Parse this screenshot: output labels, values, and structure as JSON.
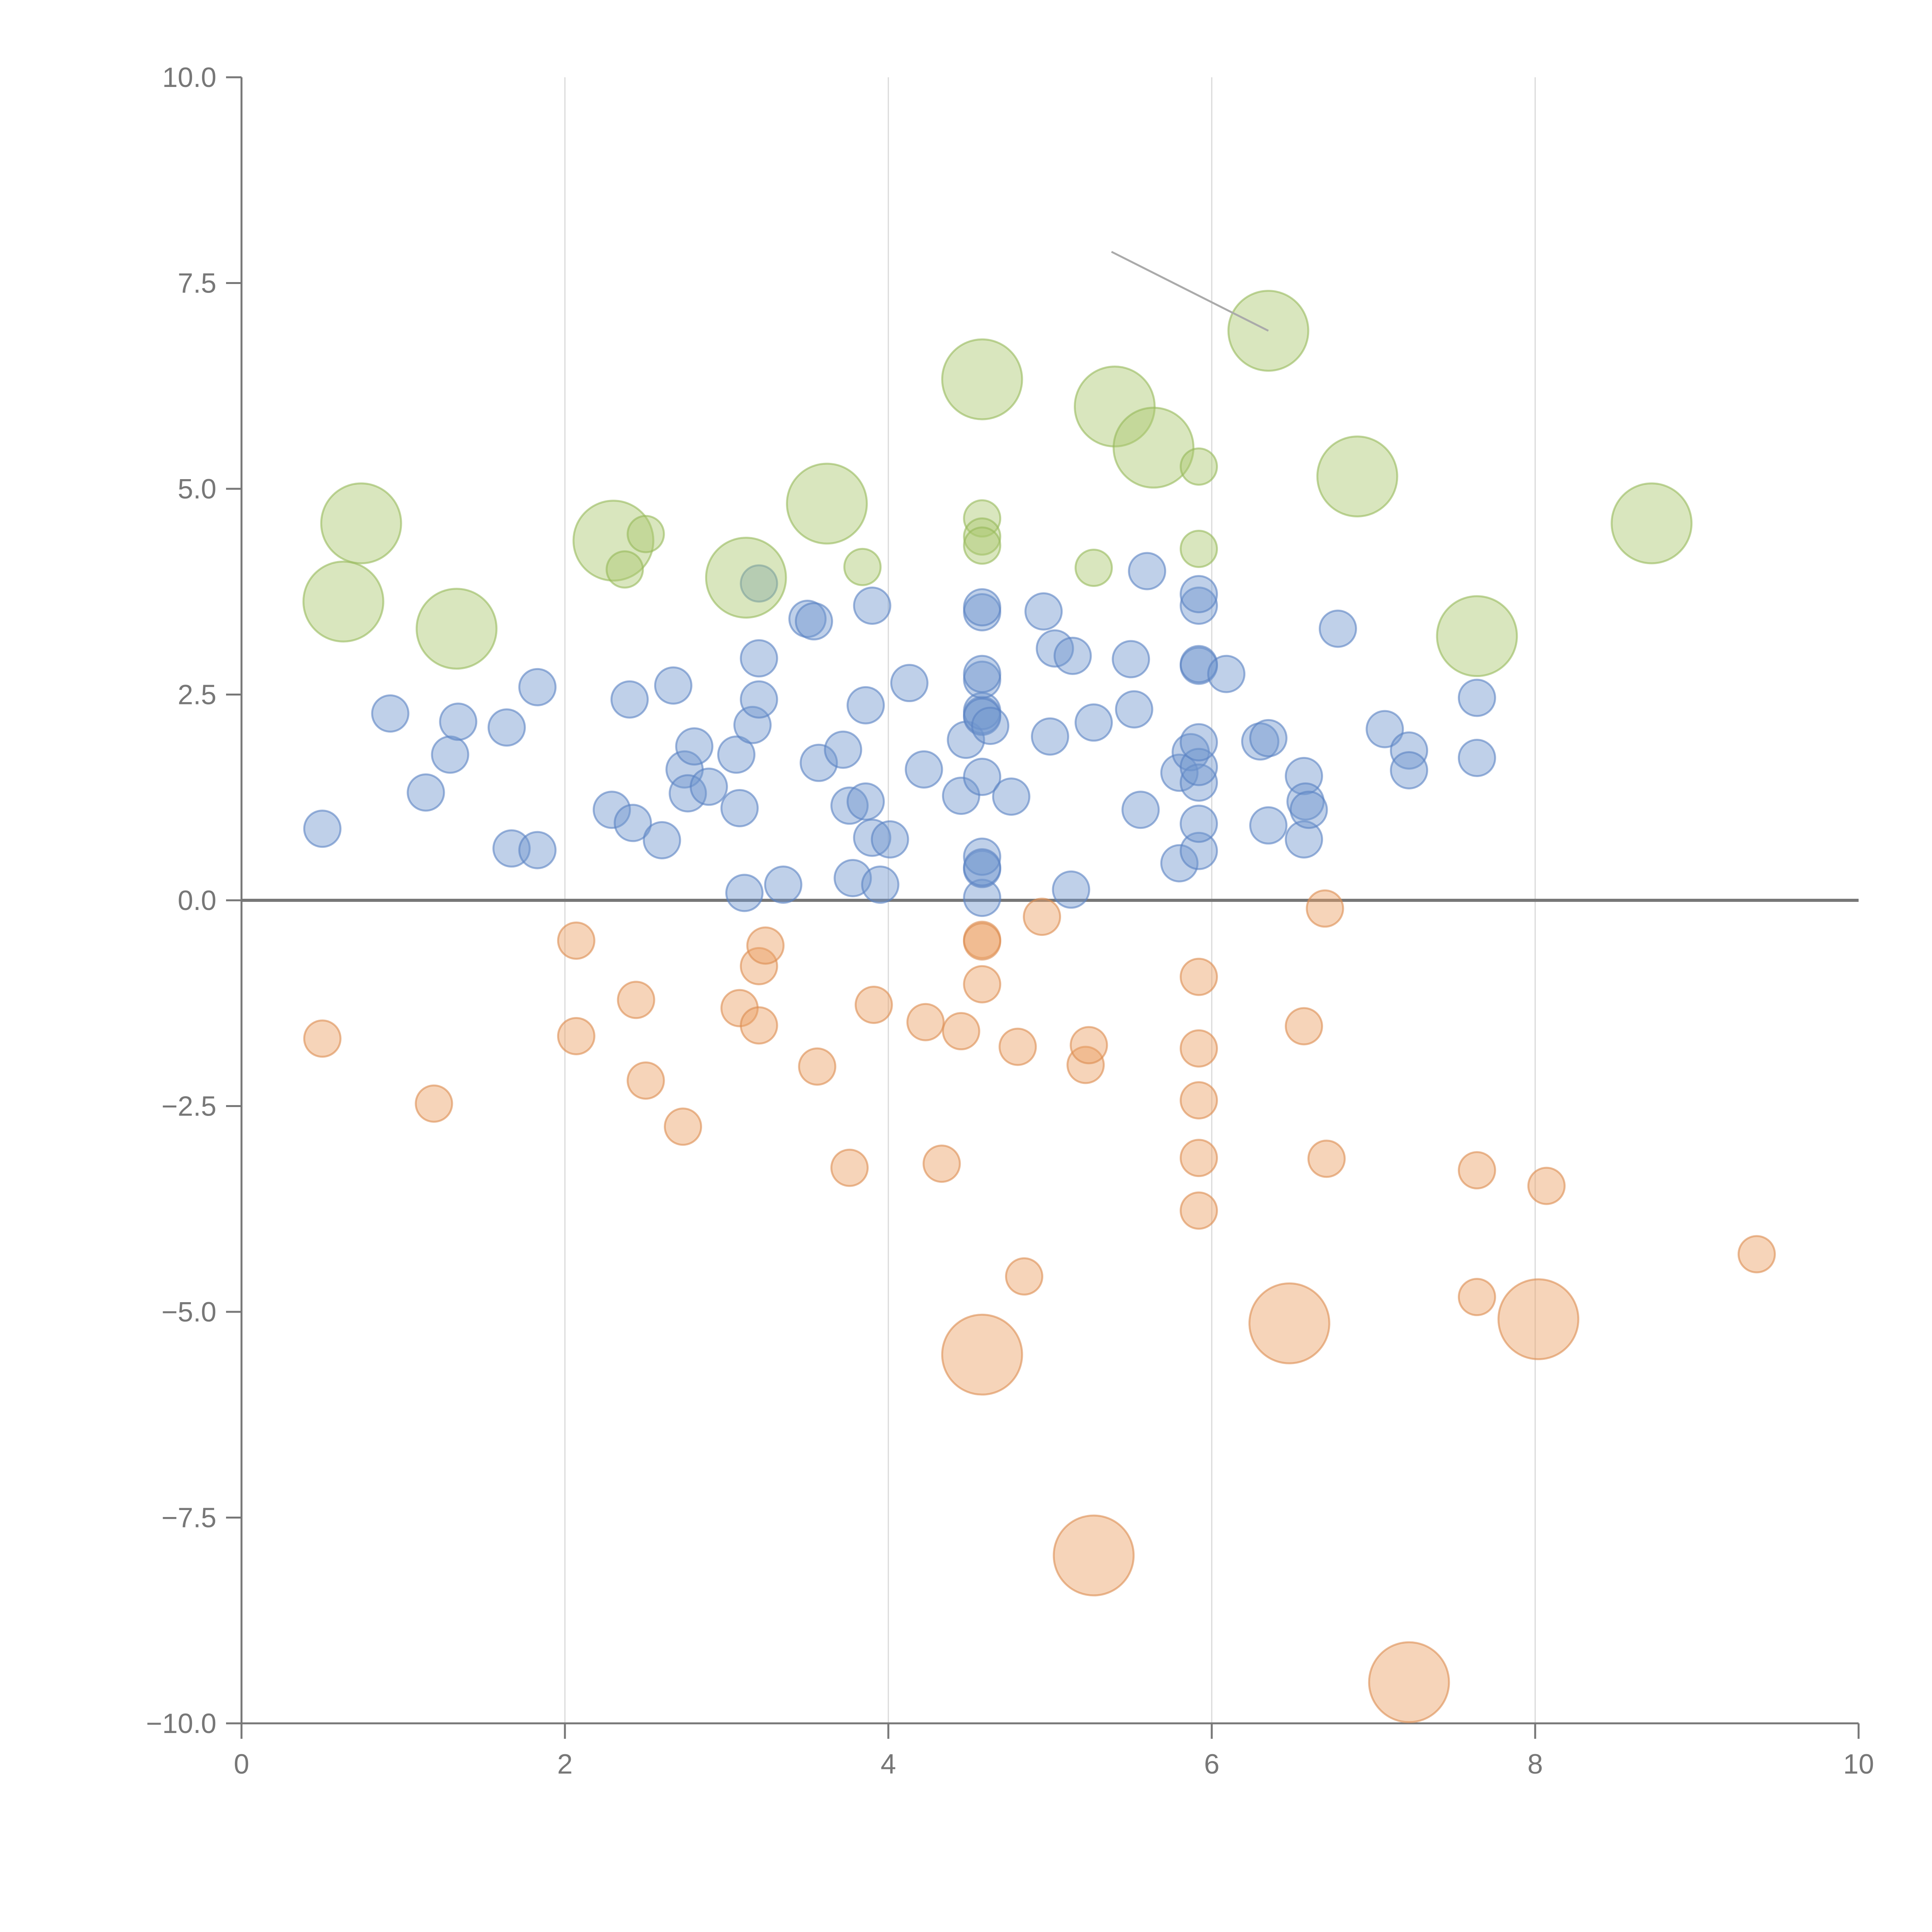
{
  "chart_data": {
    "type": "scatter",
    "title": "",
    "xlabel": "",
    "ylabel": "",
    "xlim": [
      0,
      10
    ],
    "ylim": [
      -10,
      10
    ],
    "x_ticks": [
      0,
      2,
      4,
      6,
      8,
      10
    ],
    "y_ticks": [
      -10,
      -7.5,
      -5,
      -2.5,
      0,
      2.5,
      5,
      7.5,
      10
    ],
    "x_tick_labels": [
      "0",
      "2",
      "4",
      "6",
      "8",
      "10"
    ],
    "y_tick_labels": [
      "−10.0",
      "−7.5",
      "−5.0",
      "−2.5",
      "0.0",
      "2.5",
      "5.0",
      "7.5",
      "10.0"
    ],
    "grid": "vertical",
    "zero_line": true,
    "colors": {
      "positive": "#7297cf",
      "negative": "#eba064",
      "highlight": "#aac86e",
      "axis": "#777777",
      "grid": "#d9d9d9"
    },
    "annotation": {
      "from": [
        5.38,
        7.88
      ],
      "to": [
        6.35,
        6.92
      ]
    },
    "series": [
      {
        "name": "positive",
        "points": [
          [
            0.5,
            0.87,
            1
          ],
          [
            0.92,
            2.27,
            1
          ],
          [
            1.14,
            1.31,
            1
          ],
          [
            1.29,
            1.77,
            1
          ],
          [
            1.34,
            2.17,
            1
          ],
          [
            1.64,
            2.1,
            1
          ],
          [
            1.67,
            0.63,
            1
          ],
          [
            1.83,
            2.59,
            1
          ],
          [
            1.83,
            0.61,
            1
          ],
          [
            2.29,
            1.1,
            1
          ],
          [
            2.4,
            2.44,
            1
          ],
          [
            2.42,
            0.94,
            1
          ],
          [
            2.6,
            0.73,
            1
          ],
          [
            2.67,
            2.61,
            1
          ],
          [
            2.74,
            1.59,
            1
          ],
          [
            2.76,
            1.3,
            1
          ],
          [
            2.8,
            1.87,
            1
          ],
          [
            2.89,
            1.38,
            1
          ],
          [
            3.06,
            1.77,
            1
          ],
          [
            3.08,
            1.12,
            1
          ],
          [
            3.11,
            0.09,
            1
          ],
          [
            3.16,
            2.13,
            1
          ],
          [
            3.2,
            2.94,
            1
          ],
          [
            3.2,
            2.44,
            1
          ],
          [
            3.2,
            3.85,
            1
          ],
          [
            3.35,
            0.19,
            1
          ],
          [
            3.5,
            3.42,
            1
          ],
          [
            3.54,
            3.39,
            1
          ],
          [
            3.57,
            1.67,
            1
          ],
          [
            3.72,
            1.83,
            1
          ],
          [
            3.76,
            1.15,
            1
          ],
          [
            3.78,
            0.27,
            1
          ],
          [
            3.86,
            2.37,
            1
          ],
          [
            3.86,
            1.2,
            1
          ],
          [
            3.9,
            0.76,
            1
          ],
          [
            3.9,
            3.58,
            1
          ],
          [
            3.95,
            0.19,
            1
          ],
          [
            4.01,
            0.74,
            1
          ],
          [
            4.13,
            2.64,
            1
          ],
          [
            4.22,
            1.59,
            1
          ],
          [
            4.45,
            1.27,
            1
          ],
          [
            4.48,
            1.95,
            1
          ],
          [
            4.58,
            0.03,
            1
          ],
          [
            4.58,
            0.38,
            1
          ],
          [
            4.58,
            0.53,
            1
          ],
          [
            4.58,
            0.4,
            1
          ],
          [
            4.58,
            1.5,
            1
          ],
          [
            4.58,
            2.25,
            1
          ],
          [
            4.58,
            2.3,
            1
          ],
          [
            4.58,
            2.68,
            1
          ],
          [
            4.58,
            2.75,
            1
          ],
          [
            4.58,
            3.5,
            1
          ],
          [
            4.58,
            3.56,
            1
          ],
          [
            4.58,
            2.23,
            1
          ],
          [
            4.63,
            2.12,
            1
          ],
          [
            4.76,
            1.26,
            1
          ],
          [
            4.96,
            3.51,
            1
          ],
          [
            5.0,
            1.99,
            1
          ],
          [
            5.03,
            3.06,
            1
          ],
          [
            5.13,
            0.13,
            1
          ],
          [
            5.14,
            2.97,
            1
          ],
          [
            5.27,
            2.16,
            1
          ],
          [
            5.5,
            2.93,
            1
          ],
          [
            5.52,
            2.32,
            1
          ],
          [
            5.56,
            1.1,
            1
          ],
          [
            5.6,
            4.0,
            1
          ],
          [
            5.8,
            0.45,
            1
          ],
          [
            5.8,
            1.55,
            1
          ],
          [
            5.87,
            1.8,
            1
          ],
          [
            5.92,
            0.6,
            1
          ],
          [
            5.92,
            0.93,
            1
          ],
          [
            5.92,
            1.43,
            1
          ],
          [
            5.92,
            1.62,
            1
          ],
          [
            5.92,
            1.92,
            1
          ],
          [
            5.92,
            2.85,
            1
          ],
          [
            5.92,
            2.87,
            1
          ],
          [
            5.92,
            3.58,
            1
          ],
          [
            5.92,
            3.72,
            1
          ],
          [
            6.09,
            2.75,
            1
          ],
          [
            6.3,
            1.93,
            1
          ],
          [
            6.35,
            1.97,
            1
          ],
          [
            6.35,
            0.91,
            1
          ],
          [
            6.57,
            0.74,
            1
          ],
          [
            6.57,
            1.51,
            1
          ],
          [
            6.58,
            1.2,
            1
          ],
          [
            6.6,
            1.1,
            1
          ],
          [
            6.78,
            3.3,
            1
          ],
          [
            7.07,
            2.08,
            1
          ],
          [
            7.22,
            1.82,
            1
          ],
          [
            7.22,
            1.58,
            1
          ],
          [
            7.64,
            1.73,
            1
          ],
          [
            7.64,
            2.46,
            1
          ]
        ]
      },
      {
        "name": "negative",
        "points": [
          [
            0.5,
            -1.68,
            1
          ],
          [
            1.19,
            -2.47,
            1
          ],
          [
            2.07,
            -0.49,
            1
          ],
          [
            2.07,
            -1.65,
            1
          ],
          [
            2.44,
            -1.21,
            1
          ],
          [
            2.5,
            -2.19,
            1
          ],
          [
            2.73,
            -2.75,
            1
          ],
          [
            3.08,
            -1.31,
            1
          ],
          [
            3.2,
            -0.8,
            1
          ],
          [
            3.2,
            -1.52,
            1
          ],
          [
            3.24,
            -0.55,
            1
          ],
          [
            3.56,
            -2.02,
            1
          ],
          [
            3.76,
            -3.25,
            1
          ],
          [
            3.91,
            -1.27,
            1
          ],
          [
            4.23,
            -1.48,
            1
          ],
          [
            4.33,
            -3.2,
            1
          ],
          [
            4.45,
            -1.59,
            1
          ],
          [
            4.58,
            -0.48,
            1
          ],
          [
            4.58,
            -0.5,
            1
          ],
          [
            4.58,
            -1.02,
            1
          ],
          [
            4.58,
            -5.52,
            2.2
          ],
          [
            4.8,
            -1.78,
            1
          ],
          [
            4.84,
            -4.57,
            1
          ],
          [
            4.95,
            -0.2,
            1
          ],
          [
            5.22,
            -2.0,
            1
          ],
          [
            5.24,
            -1.76,
            1
          ],
          [
            5.27,
            -7.96,
            2.2
          ],
          [
            5.92,
            -0.93,
            1
          ],
          [
            5.92,
            -1.8,
            1
          ],
          [
            5.92,
            -2.43,
            1
          ],
          [
            5.92,
            -3.13,
            1
          ],
          [
            5.92,
            -3.77,
            1
          ],
          [
            6.48,
            -5.14,
            2.2
          ],
          [
            6.57,
            -1.53,
            1
          ],
          [
            6.7,
            -0.1,
            1
          ],
          [
            6.71,
            -3.14,
            1
          ],
          [
            7.22,
            -9.5,
            2.2
          ],
          [
            7.64,
            -3.28,
            1
          ],
          [
            7.64,
            -4.82,
            1
          ],
          [
            8.02,
            -5.09,
            2.2
          ],
          [
            8.07,
            -3.47,
            1
          ],
          [
            9.37,
            -4.3,
            1
          ]
        ]
      },
      {
        "name": "highlight",
        "points": [
          [
            0.63,
            3.63,
            2.2
          ],
          [
            0.74,
            4.58,
            2.2
          ],
          [
            1.33,
            3.3,
            2.2
          ],
          [
            2.3,
            4.37,
            2.2
          ],
          [
            2.37,
            4.02,
            1
          ],
          [
            2.5,
            4.45,
            1
          ],
          [
            3.12,
            3.92,
            2.2
          ],
          [
            3.62,
            4.82,
            2.2
          ],
          [
            3.84,
            4.05,
            1
          ],
          [
            4.58,
            6.33,
            2.2
          ],
          [
            4.58,
            4.64,
            1
          ],
          [
            4.58,
            4.42,
            1
          ],
          [
            4.58,
            4.31,
            1
          ],
          [
            5.27,
            4.04,
            1
          ],
          [
            5.4,
            6.0,
            2.2
          ],
          [
            5.64,
            5.5,
            2.2
          ],
          [
            5.92,
            5.27,
            1
          ],
          [
            5.92,
            4.27,
            1
          ],
          [
            6.35,
            6.92,
            2.2
          ],
          [
            6.9,
            5.15,
            2.2
          ],
          [
            7.64,
            3.21,
            2.2
          ],
          [
            8.72,
            4.58,
            2.2
          ]
        ]
      }
    ]
  }
}
